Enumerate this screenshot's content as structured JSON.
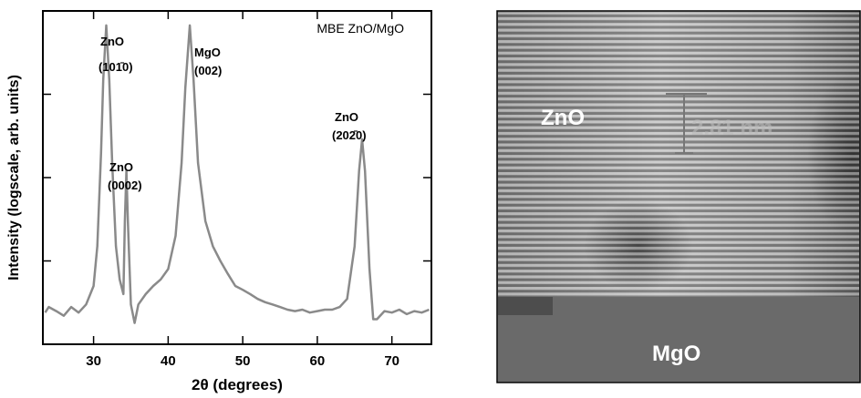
{
  "chart_data": {
    "type": "line",
    "title": "MBE ZnO/MgO",
    "x_label": "2θ (degrees)",
    "y_label": "Intensity (logscale, arb. units)",
    "log_y": true,
    "ytick_labels": false,
    "xlim": [
      23.2,
      75.3
    ],
    "xticks": [
      30,
      40,
      50,
      60,
      70
    ],
    "ylim": [
      1,
      10000
    ],
    "yticks": [
      10,
      100,
      1000
    ],
    "annotations": [
      "ZnO",
      "(101̄0)",
      "ZnO",
      "(0002)",
      "MgO",
      "(002)",
      "ZnO",
      "(202̄0)"
    ],
    "x": [
      23.5,
      24,
      25,
      26,
      27,
      28,
      29,
      30,
      30.5,
      31,
      31.3,
      31.7,
      32.1,
      32.5,
      33,
      33.5,
      34,
      34.2,
      34.4,
      34.6,
      35,
      35.5,
      36,
      37,
      38,
      39,
      40,
      41,
      41.8,
      42.3,
      42.9,
      43.4,
      44,
      45,
      46,
      47,
      48,
      49,
      50,
      51,
      52,
      53,
      54,
      55,
      56,
      57,
      58,
      59,
      60,
      61,
      62,
      63,
      64,
      65,
      65.6,
      66,
      66.4,
      67,
      67.5,
      68,
      69,
      70,
      71,
      72,
      73,
      74,
      75
    ],
    "series": [
      {
        "name": "MBE ZnO/MgO",
        "color": "#8a8a8a",
        "values": [
          2.4,
          2.8,
          2.5,
          2.2,
          2.8,
          2.4,
          3,
          5,
          15,
          200,
          1500,
          6700,
          1500,
          150,
          15,
          6,
          4,
          30,
          122,
          30,
          3,
          1.8,
          3,
          4,
          5,
          6,
          8,
          20,
          150,
          1200,
          6700,
          1500,
          150,
          30,
          15,
          10,
          7,
          5,
          4.5,
          4,
          3.5,
          3.2,
          3,
          2.8,
          2.6,
          2.5,
          2.6,
          2.4,
          2.5,
          2.6,
          2.6,
          2.8,
          3.5,
          15,
          120,
          288,
          120,
          8,
          2,
          2,
          2.5,
          2.4,
          2.6,
          2.3,
          2.5,
          2.4,
          2.6
        ]
      }
    ]
  },
  "image": {
    "top_label": "ZnO",
    "bottom_label": "MgO",
    "scale_label": "2.81 nm"
  }
}
